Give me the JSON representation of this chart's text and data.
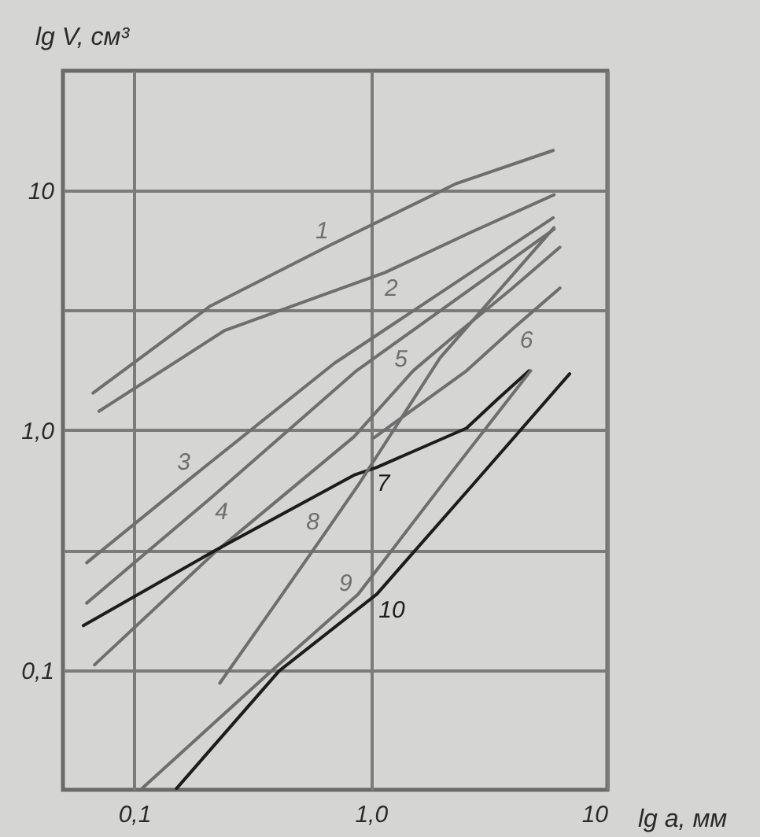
{
  "chart_data": {
    "type": "line",
    "xlabel": "lg a, мм",
    "ylabel": "lg V, см³",
    "log": "xy",
    "grid": true,
    "legend": false,
    "xlim": [
      0.05,
      10
    ],
    "ylim": [
      0.0316,
      31.6
    ],
    "xticks": [
      {
        "value": 0.1,
        "label": "0,1"
      },
      {
        "value": 1,
        "label": "1,0"
      },
      10
    ],
    "yticks": [
      {
        "value": 0.1,
        "label": "0,1"
      },
      {
        "value": 0.316,
        "label": null
      },
      {
        "value": 1,
        "label": "1,0"
      },
      {
        "value": 3.16,
        "label": null
      },
      10
    ],
    "series": [
      {
        "name": "1",
        "color": "#6e6e6e",
        "x": [
          0.067,
          0.21,
          0.67,
          2.3,
          5.9
        ],
        "values": [
          1.43,
          3.3,
          5.9,
          10.7,
          14.7
        ]
      },
      {
        "name": "2",
        "color": "#6e6e6e",
        "x": [
          0.071,
          0.24,
          1.15,
          2.65,
          5.95
        ],
        "values": [
          1.2,
          2.6,
          4.55,
          6.7,
          9.6
        ]
      },
      {
        "name": "3",
        "color": "#6e6e6e",
        "x": [
          0.063,
          0.18,
          0.7,
          5.9
        ],
        "values": [
          0.28,
          0.65,
          1.9,
          7.7
        ]
      },
      {
        "name": "4",
        "color": "#6e6e6e",
        "x": [
          0.063,
          0.21,
          0.87,
          5.95
        ],
        "values": [
          0.19,
          0.52,
          1.77,
          6.9
        ]
      },
      {
        "name": "5",
        "color": "#6e6e6e",
        "x": [
          0.068,
          0.22,
          0.85,
          1.51,
          2.28,
          3.9,
          6.3
        ],
        "values": [
          0.105,
          0.31,
          0.94,
          1.77,
          2.5,
          3.86,
          5.8
        ]
      },
      {
        "name": "6",
        "color": "#6e6e6e",
        "x": [
          1.03,
          2.54,
          4.07,
          5.1,
          6.3
        ],
        "values": [
          0.93,
          1.77,
          2.7,
          3.27,
          3.92
        ]
      },
      {
        "name": "7",
        "color": "#1c1c1c",
        "x": [
          0.061,
          0.22,
          0.85,
          1.06,
          2.54,
          3.44,
          4.67
        ],
        "values": [
          0.153,
          0.315,
          0.65,
          0.7,
          1.02,
          1.35,
          1.77
        ]
      },
      {
        "name": "8",
        "color": "#6e6e6e",
        "x": [
          0.23,
          0.41,
          0.65,
          0.885,
          1.96,
          5.95
        ],
        "values": [
          0.088,
          0.198,
          0.38,
          0.59,
          2.0,
          7.0
        ]
      },
      {
        "name": "9",
        "color": "#6e6e6e",
        "x": [
          0.108,
          0.38,
          0.885,
          2.28,
          4.74
        ],
        "values": [
          0.032,
          0.099,
          0.207,
          0.7,
          1.77
        ]
      },
      {
        "name": "10",
        "color": "#1c1c1c",
        "x": [
          0.151,
          0.41,
          1.06,
          2.65,
          6.93
        ],
        "values": [
          0.032,
          0.099,
          0.207,
          0.58,
          1.72
        ]
      }
    ]
  }
}
